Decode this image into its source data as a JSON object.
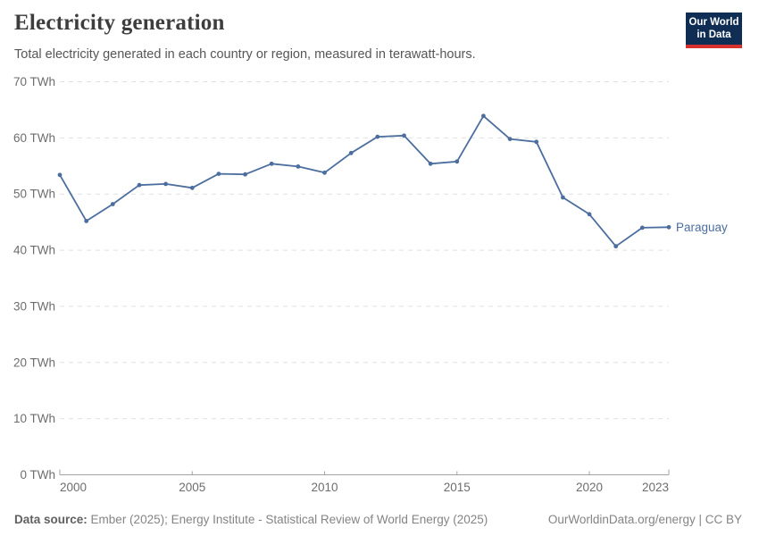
{
  "header": {
    "title": "Electricity generation",
    "subtitle": "Total electricity generated in each country or region, measured in terawatt-hours.",
    "logo": {
      "line1": "Our World",
      "line2": "in Data",
      "navy": "#102D54",
      "red": "#D6302F"
    }
  },
  "chart_data": {
    "type": "line",
    "title": "Electricity generation",
    "subtitle": "Total electricity generated in each country or region, measured in terawatt-hours.",
    "unit": "TWh",
    "x": [
      2000,
      2001,
      2002,
      2003,
      2004,
      2005,
      2006,
      2007,
      2008,
      2009,
      2010,
      2011,
      2012,
      2013,
      2014,
      2015,
      2016,
      2017,
      2018,
      2019,
      2020,
      2021,
      2022,
      2023
    ],
    "series": [
      {
        "name": "Paraguay",
        "color": "#4C6E9F",
        "values": [
          53.4,
          45.2,
          48.2,
          51.6,
          51.8,
          51.1,
          53.6,
          53.5,
          55.4,
          54.9,
          53.8,
          57.3,
          60.2,
          60.4,
          55.4,
          55.8,
          63.9,
          59.8,
          59.3,
          49.4,
          46.4,
          40.7,
          44.0,
          44.1
        ]
      }
    ],
    "xlim": [
      2000,
      2023
    ],
    "ylim": [
      0,
      70
    ],
    "x_ticks": [
      2000,
      2005,
      2010,
      2015,
      2020,
      2023
    ],
    "y_ticks": [
      0,
      10,
      20,
      30,
      40,
      50,
      60,
      70
    ],
    "y_tick_format": "{v} TWh",
    "grid": "horizontal-dashed",
    "legend_position": "end-of-line-label"
  },
  "footer": {
    "datasource_label": "Data source:",
    "datasource_text": "Ember (2025); Energy Institute - Statistical Review of World Energy (2025)",
    "right_text": "OurWorldinData.org/energy | CC BY"
  }
}
